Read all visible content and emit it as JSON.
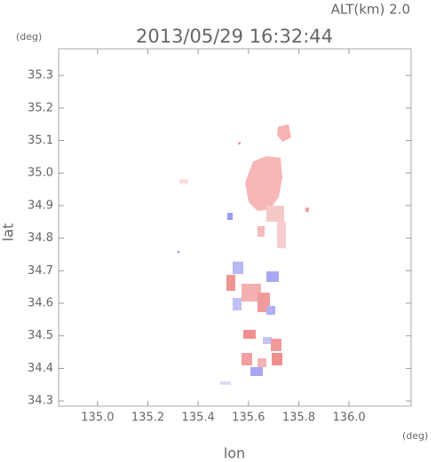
{
  "chart_data": {
    "type": "map",
    "label": "ALT(km) 2.0",
    "title": "2013/05/29 16:32:44",
    "y_unit": "(deg)",
    "x_unit": "(deg)",
    "ylabel": "lat",
    "xlabel": "lon",
    "xlim": [
      134.845,
      136.247
    ],
    "ylim": [
      34.284,
      35.382
    ],
    "xticks": [
      {
        "value": 135.0,
        "label": "135.0"
      },
      135.2,
      135.4,
      135.6,
      135.8,
      {
        "value": 136.0,
        "label": "136.0"
      }
    ],
    "yticks": [
      34.3,
      34.4,
      34.5,
      34.6,
      34.7,
      34.8,
      34.9,
      {
        "value": 35.0,
        "label": "35.0"
      },
      35.1,
      35.2,
      35.3
    ]
  }
}
